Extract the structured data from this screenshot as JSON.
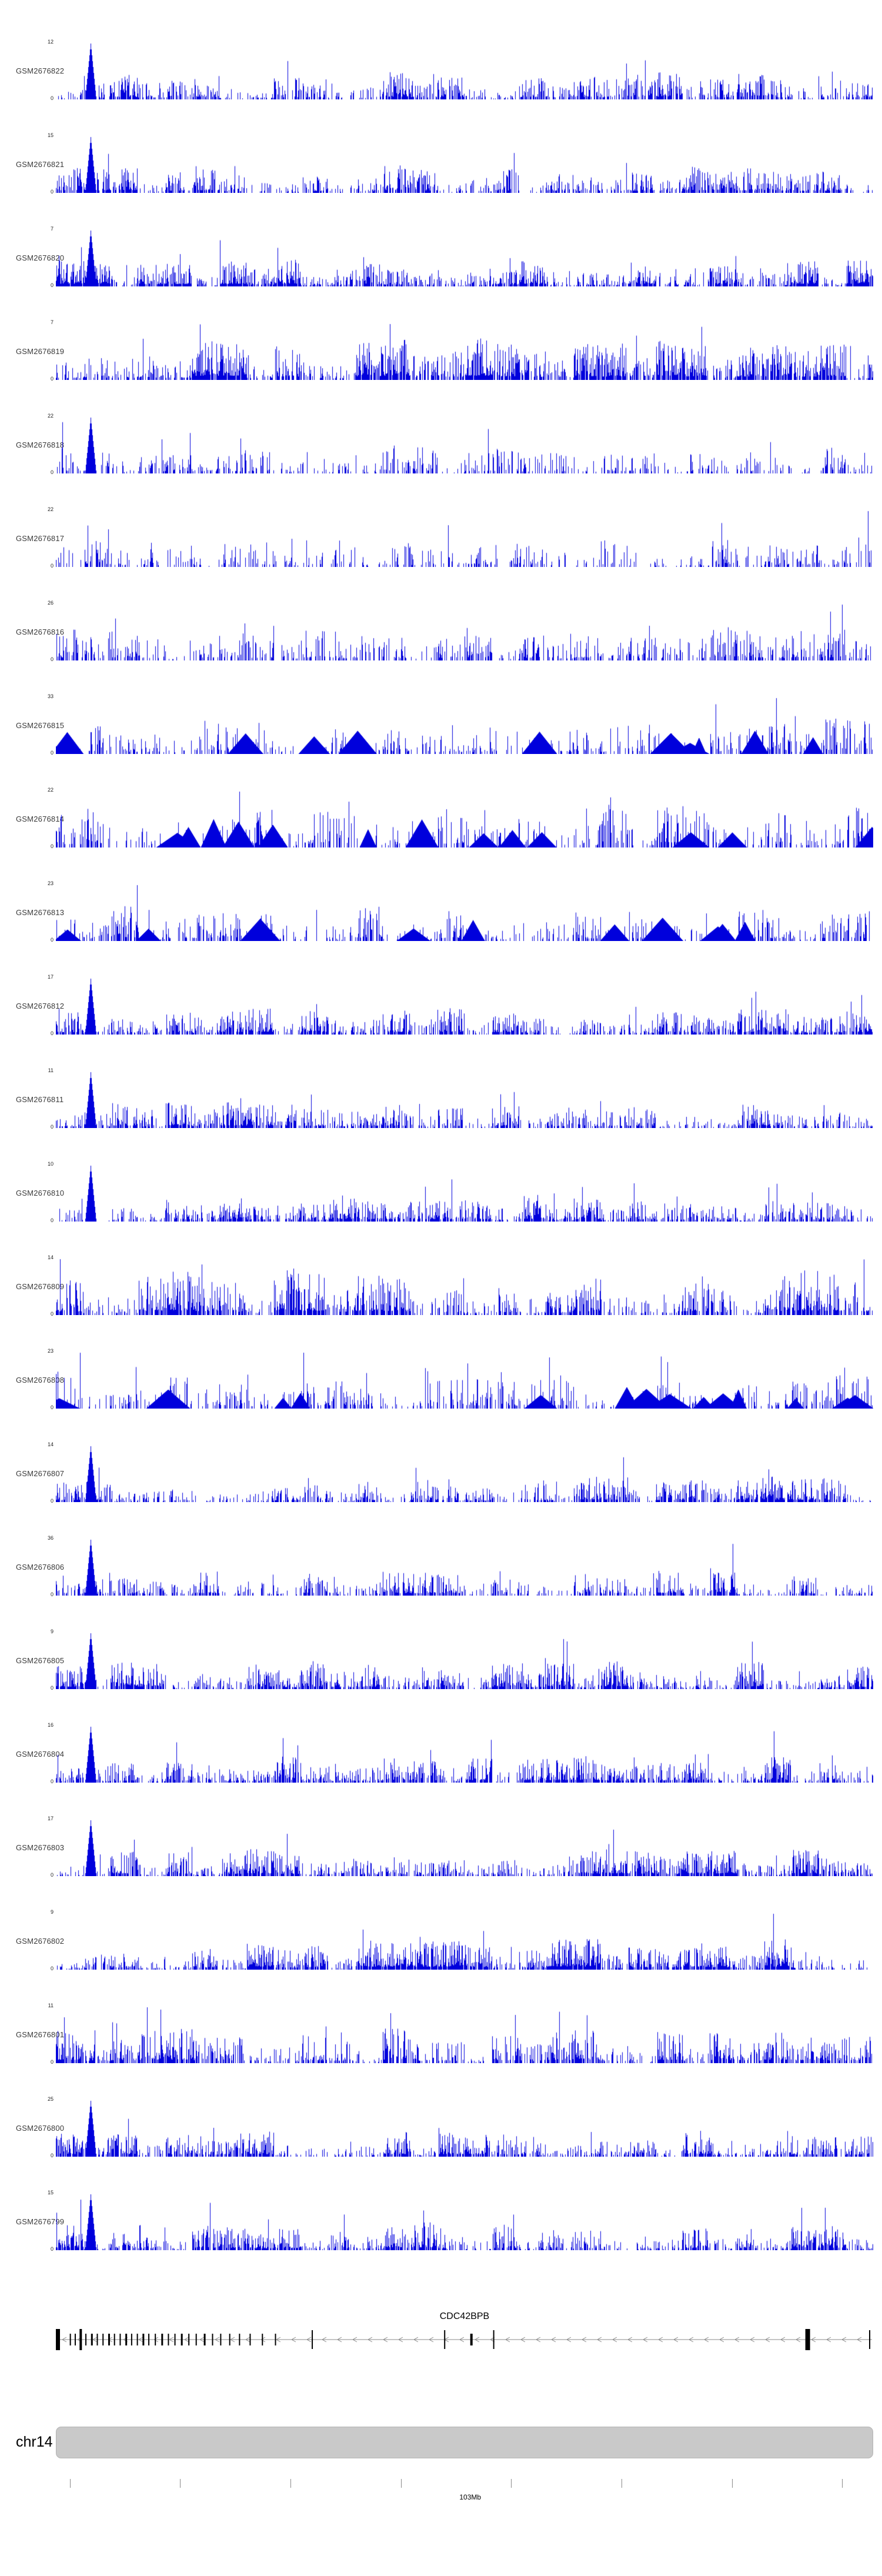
{
  "chart_data": {
    "type": "area",
    "description": "Genome-browser style coverage/signal tracks (24 GEO samples) over human chr14 near 103Mb, above the CDC42BPB gene model and chromosome ideogram",
    "signal_color": "#0000DC",
    "yzero_label": "0",
    "tracks": [
      {
        "label": "GSM2676822",
        "ymax": 12,
        "ylim": [
          0,
          12
        ],
        "seed": 101,
        "density": 0.75,
        "big_peak": true,
        "blobs": false
      },
      {
        "label": "GSM2676821",
        "ymax": 15,
        "ylim": [
          0,
          15
        ],
        "seed": 102,
        "density": 0.75,
        "big_peak": true,
        "blobs": false
      },
      {
        "label": "GSM2676820",
        "ymax": 7,
        "ylim": [
          0,
          7
        ],
        "seed": 103,
        "density": 0.95,
        "big_peak": true,
        "blobs": false
      },
      {
        "label": "GSM2676819",
        "ymax": 7,
        "ylim": [
          0,
          7
        ],
        "seed": 104,
        "density": 0.95,
        "big_peak": false,
        "blobs": false
      },
      {
        "label": "GSM2676818",
        "ymax": 22,
        "ylim": [
          0,
          22
        ],
        "seed": 105,
        "density": 0.45,
        "big_peak": true,
        "blobs": false
      },
      {
        "label": "GSM2676817",
        "ymax": 22,
        "ylim": [
          0,
          22
        ],
        "seed": 106,
        "density": 0.45,
        "big_peak": false,
        "blobs": false
      },
      {
        "label": "GSM2676816",
        "ymax": 26,
        "ylim": [
          0,
          26
        ],
        "seed": 107,
        "density": 0.5,
        "big_peak": false,
        "blobs": false
      },
      {
        "label": "GSM2676815",
        "ymax": 33,
        "ylim": [
          0,
          33
        ],
        "seed": 108,
        "density": 0.5,
        "big_peak": false,
        "blobs": true
      },
      {
        "label": "GSM2676814",
        "ymax": 22,
        "ylim": [
          0,
          22
        ],
        "seed": 109,
        "density": 0.5,
        "big_peak": false,
        "blobs": true
      },
      {
        "label": "GSM2676813",
        "ymax": 23,
        "ylim": [
          0,
          23
        ],
        "seed": 110,
        "density": 0.55,
        "big_peak": false,
        "blobs": true
      },
      {
        "label": "GSM2676812",
        "ymax": 17,
        "ylim": [
          0,
          17
        ],
        "seed": 111,
        "density": 0.8,
        "big_peak": true,
        "blobs": false
      },
      {
        "label": "GSM2676811",
        "ymax": 11,
        "ylim": [
          0,
          11
        ],
        "seed": 112,
        "density": 0.8,
        "big_peak": true,
        "blobs": false
      },
      {
        "label": "GSM2676810",
        "ymax": 10,
        "ylim": [
          0,
          10
        ],
        "seed": 113,
        "density": 0.85,
        "big_peak": true,
        "blobs": false
      },
      {
        "label": "GSM2676809",
        "ymax": 14,
        "ylim": [
          0,
          14
        ],
        "seed": 114,
        "density": 0.85,
        "big_peak": false,
        "blobs": false
      },
      {
        "label": "GSM2676808",
        "ymax": 23,
        "ylim": [
          0,
          23
        ],
        "seed": 115,
        "density": 0.5,
        "big_peak": false,
        "blobs": true
      },
      {
        "label": "GSM2676807",
        "ymax": 14,
        "ylim": [
          0,
          14
        ],
        "seed": 116,
        "density": 0.85,
        "big_peak": true,
        "blobs": false
      },
      {
        "label": "GSM2676806",
        "ymax": 36,
        "ylim": [
          0,
          36
        ],
        "seed": 117,
        "density": 0.7,
        "big_peak": true,
        "blobs": false
      },
      {
        "label": "GSM2676805",
        "ymax": 9,
        "ylim": [
          0,
          9
        ],
        "seed": 118,
        "density": 0.85,
        "big_peak": true,
        "blobs": false
      },
      {
        "label": "GSM2676804",
        "ymax": 16,
        "ylim": [
          0,
          16
        ],
        "seed": 119,
        "density": 0.85,
        "big_peak": true,
        "blobs": false
      },
      {
        "label": "GSM2676803",
        "ymax": 17,
        "ylim": [
          0,
          17
        ],
        "seed": 120,
        "density": 0.85,
        "big_peak": true,
        "blobs": false
      },
      {
        "label": "GSM2676802",
        "ymax": 9,
        "ylim": [
          0,
          9
        ],
        "seed": 121,
        "density": 0.95,
        "big_peak": false,
        "blobs": false
      },
      {
        "label": "GSM2676801",
        "ymax": 11,
        "ylim": [
          0,
          11
        ],
        "seed": 122,
        "density": 0.8,
        "big_peak": false,
        "blobs": false
      },
      {
        "label": "GSM2676800",
        "ymax": 25,
        "ylim": [
          0,
          25
        ],
        "seed": 123,
        "density": 0.8,
        "big_peak": true,
        "blobs": false
      },
      {
        "label": "GSM2676799",
        "ymax": 15,
        "ylim": [
          0,
          15
        ],
        "seed": 124,
        "density": 0.85,
        "big_peak": true,
        "blobs": false
      }
    ],
    "gene_track": {
      "name": "CDC42BPB",
      "strand": "minus",
      "line_color": "#8a8a8a",
      "exon_color": "#000000",
      "exons": [
        [
          0.0,
          7,
          "b"
        ],
        [
          0.017,
          2,
          "m"
        ],
        [
          0.023,
          2,
          "m"
        ],
        [
          0.029,
          4,
          "b"
        ],
        [
          0.036,
          2,
          "m"
        ],
        [
          0.043,
          3,
          "m"
        ],
        [
          0.05,
          2,
          "m"
        ],
        [
          0.057,
          2,
          "m"
        ],
        [
          0.064,
          3,
          "m"
        ],
        [
          0.071,
          2,
          "m"
        ],
        [
          0.078,
          2,
          "m"
        ],
        [
          0.085,
          3,
          "m"
        ],
        [
          0.092,
          2,
          "m"
        ],
        [
          0.099,
          2,
          "m"
        ],
        [
          0.106,
          3,
          "m"
        ],
        [
          0.113,
          2,
          "m"
        ],
        [
          0.121,
          2,
          "m"
        ],
        [
          0.129,
          3,
          "m"
        ],
        [
          0.137,
          2,
          "m"
        ],
        [
          0.145,
          2,
          "m"
        ],
        [
          0.153,
          3,
          "m"
        ],
        [
          0.162,
          2,
          "m"
        ],
        [
          0.171,
          2,
          "m"
        ],
        [
          0.181,
          3,
          "m"
        ],
        [
          0.191,
          2,
          "m"
        ],
        [
          0.201,
          2,
          "m"
        ],
        [
          0.212,
          2,
          "m"
        ],
        [
          0.224,
          2,
          "m"
        ],
        [
          0.237,
          2,
          "m"
        ],
        [
          0.252,
          2,
          "m"
        ],
        [
          0.268,
          2,
          "m"
        ],
        [
          0.313,
          2,
          "t"
        ],
        [
          0.475,
          2,
          "t"
        ],
        [
          0.507,
          4,
          "m"
        ],
        [
          0.535,
          2,
          "t"
        ],
        [
          0.917,
          8,
          "b"
        ],
        [
          0.995,
          2,
          "t"
        ]
      ]
    },
    "chromosome": {
      "label": "chr14",
      "tick_label": "103Mb",
      "tick_label_frac": 0.507,
      "ticks": [
        0.017,
        0.152,
        0.287,
        0.422,
        0.557,
        0.692,
        0.827,
        0.962
      ]
    }
  }
}
